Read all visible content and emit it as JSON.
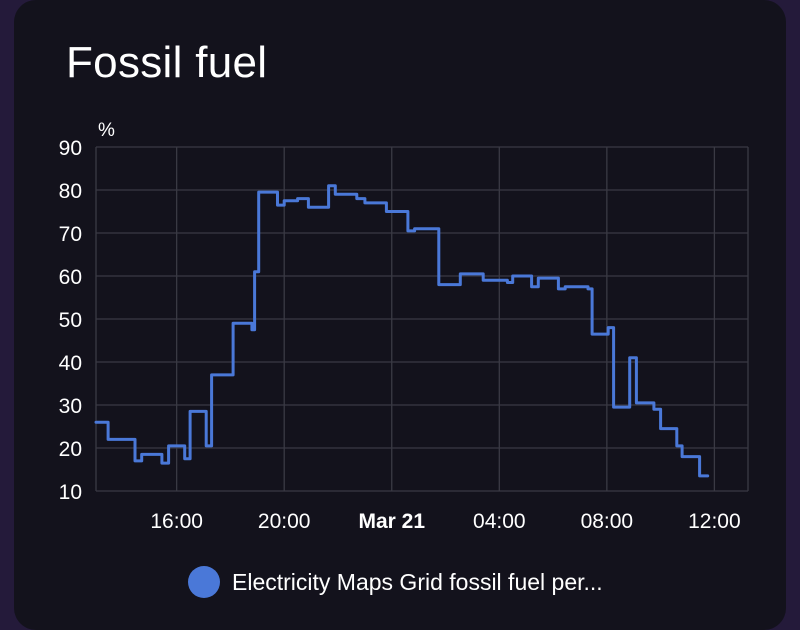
{
  "card": {
    "title": "Fossil fuel"
  },
  "colors": {
    "series": "#4a78d8",
    "grid": "#3a3a44",
    "text": "#ffffff"
  },
  "chart_data": {
    "type": "line",
    "unit": "%",
    "ylim": [
      10,
      90
    ],
    "yticks": [
      10,
      20,
      30,
      40,
      50,
      60,
      70,
      80,
      90
    ],
    "xlim": [
      13.0,
      37.25
    ],
    "xticks": [
      {
        "x": 16,
        "label": "16:00",
        "bold": false
      },
      {
        "x": 20,
        "label": "20:00",
        "bold": false
      },
      {
        "x": 24,
        "label": "Mar 21",
        "bold": true
      },
      {
        "x": 28,
        "label": "04:00",
        "bold": false
      },
      {
        "x": 32,
        "label": "08:00",
        "bold": false
      },
      {
        "x": 36,
        "label": "12:00",
        "bold": false
      }
    ],
    "grid": true,
    "legend_position": "bottom",
    "series": [
      {
        "name": "Electricity Maps Grid fossil fuel per...",
        "step": true,
        "points": [
          [
            13.0,
            26
          ],
          [
            13.45,
            22
          ],
          [
            14.45,
            17
          ],
          [
            14.7,
            18.5
          ],
          [
            15.45,
            16.5
          ],
          [
            15.7,
            20.5
          ],
          [
            16.3,
            17.5
          ],
          [
            16.5,
            28.5
          ],
          [
            17.1,
            20.5
          ],
          [
            17.3,
            37
          ],
          [
            18.1,
            49
          ],
          [
            18.8,
            47.5
          ],
          [
            18.9,
            61
          ],
          [
            19.05,
            79.5
          ],
          [
            19.75,
            76.5
          ],
          [
            20.0,
            77.5
          ],
          [
            20.5,
            78
          ],
          [
            20.9,
            76
          ],
          [
            21.65,
            81
          ],
          [
            21.9,
            79
          ],
          [
            22.7,
            78
          ],
          [
            23.0,
            77
          ],
          [
            23.8,
            75
          ],
          [
            24.6,
            70.5
          ],
          [
            24.85,
            71
          ],
          [
            25.75,
            58
          ],
          [
            26.55,
            60.5
          ],
          [
            27.4,
            59
          ],
          [
            28.3,
            58.5
          ],
          [
            28.5,
            60
          ],
          [
            29.2,
            57.5
          ],
          [
            29.45,
            59.5
          ],
          [
            30.2,
            57
          ],
          [
            30.45,
            57.5
          ],
          [
            31.3,
            57
          ],
          [
            31.45,
            46.5
          ],
          [
            32.05,
            48
          ],
          [
            32.25,
            29.5
          ],
          [
            32.85,
            41
          ],
          [
            33.1,
            30.5
          ],
          [
            33.75,
            29
          ],
          [
            34.0,
            24.5
          ],
          [
            34.6,
            20.5
          ],
          [
            34.8,
            18
          ],
          [
            35.45,
            13.5
          ],
          [
            35.75,
            13.5
          ]
        ]
      }
    ]
  }
}
